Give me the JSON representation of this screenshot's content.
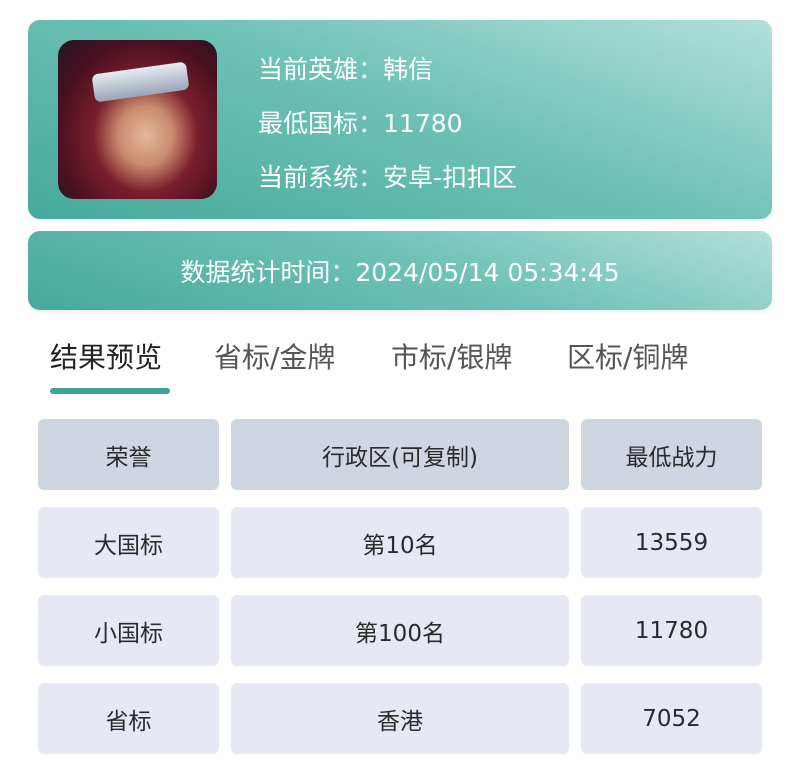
{
  "hero": {
    "avatar_icon": "hero-portrait",
    "lines": [
      "当前英雄：韩信",
      "最低国标：11780",
      "当前系统：安卓-扣扣区"
    ]
  },
  "stats_time": "数据统计时间：2024/05/14 05:34:45",
  "tabs": [
    {
      "label": "结果预览",
      "active": true
    },
    {
      "label": "省标/金牌",
      "active": false
    },
    {
      "label": "市标/银牌",
      "active": false
    },
    {
      "label": "区标/铜牌",
      "active": false
    }
  ],
  "table": {
    "headers": [
      "荣誉",
      "行政区(可复制)",
      "最低战力"
    ],
    "rows": [
      [
        "大国标",
        "第10名",
        "13559"
      ],
      [
        "小国标",
        "第100名",
        "11780"
      ],
      [
        "省标",
        "香港",
        "7052"
      ]
    ]
  },
  "colors": {
    "accent": "#3ea394",
    "header_cell": "#cfd6e1",
    "body_cell": "#e6e9f4"
  }
}
